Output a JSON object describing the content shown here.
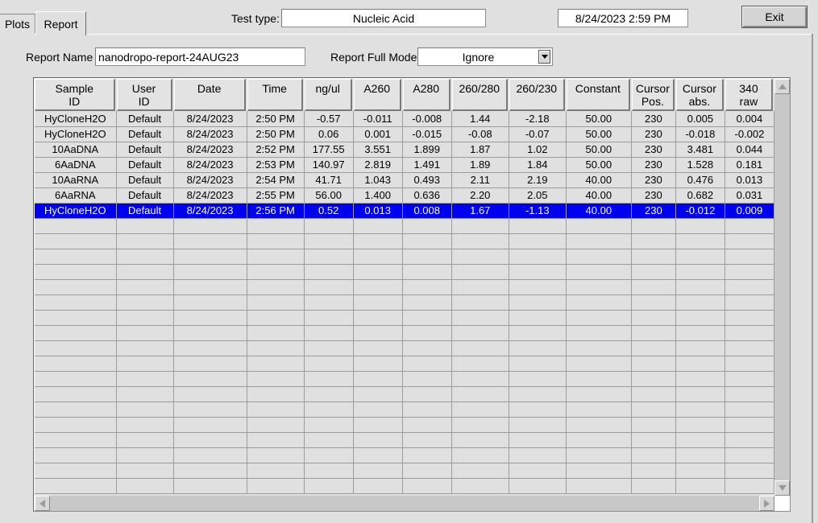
{
  "tabs": [
    {
      "label": "Plots",
      "active": false
    },
    {
      "label": "Report",
      "active": true
    }
  ],
  "header": {
    "test_type_label": "Test type:",
    "test_type_value": "Nucleic Acid",
    "datetime": "8/24/2023  2:59 PM",
    "exit_label": "Exit"
  },
  "report": {
    "name_label": "Report Name",
    "name_value": "nanodropo-report-24AUG23",
    "full_mode_label": "Report Full Mode",
    "full_mode_value": "Ignore"
  },
  "table": {
    "columns": [
      "Sample\nID",
      "User\nID",
      "Date",
      "Time",
      "ng/ul",
      "A260",
      "A280",
      "260/280",
      "260/230",
      "Constant",
      "Cursor\nPos.",
      "Cursor\nabs.",
      "340\nraw"
    ],
    "rows": [
      [
        "HyCloneH2O",
        "Default",
        "8/24/2023",
        "2:50 PM",
        "-0.57",
        "-0.011",
        "-0.008",
        "1.44",
        "-2.18",
        "50.00",
        "230",
        "0.005",
        "0.004"
      ],
      [
        "HyCloneH2O",
        "Default",
        "8/24/2023",
        "2:50 PM",
        "0.06",
        "0.001",
        "-0.015",
        "-0.08",
        "-0.07",
        "50.00",
        "230",
        "-0.018",
        "-0.002"
      ],
      [
        "10AaDNA",
        "Default",
        "8/24/2023",
        "2:52 PM",
        "177.55",
        "3.551",
        "1.899",
        "1.87",
        "1.02",
        "50.00",
        "230",
        "3.481",
        "0.044"
      ],
      [
        "6AaDNA",
        "Default",
        "8/24/2023",
        "2:53 PM",
        "140.97",
        "2.819",
        "1.491",
        "1.89",
        "1.84",
        "50.00",
        "230",
        "1.528",
        "0.181"
      ],
      [
        "10AaRNA",
        "Default",
        "8/24/2023",
        "2:54 PM",
        "41.71",
        "1.043",
        "0.493",
        "2.11",
        "2.19",
        "40.00",
        "230",
        "0.476",
        "0.013"
      ],
      [
        "6AaRNA",
        "Default",
        "8/24/2023",
        "2:55 PM",
        "56.00",
        "1.400",
        "0.636",
        "2.20",
        "2.05",
        "40.00",
        "230",
        "0.682",
        "0.031"
      ],
      [
        "HyCloneH2O",
        "Default",
        "8/24/2023",
        "2:56 PM",
        "0.52",
        "0.013",
        "0.008",
        "1.67",
        "-1.13",
        "40.00",
        "230",
        "-0.012",
        "0.009"
      ]
    ],
    "selected_row": 6,
    "empty_rows": 18
  },
  "colors": {
    "selection": "#0000f0",
    "background": "#e0e0e0"
  }
}
